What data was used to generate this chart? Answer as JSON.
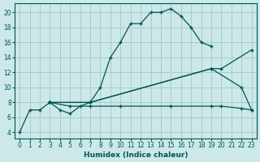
{
  "xlabel": "Humidex (Indice chaleur)",
  "background_color": "#cce8e8",
  "grid_color": "#aacccc",
  "line_color": "#005555",
  "xlim": [
    -0.5,
    23.5
  ],
  "ylim": [
    3.2,
    21.2
  ],
  "xticks": [
    0,
    1,
    2,
    3,
    4,
    5,
    6,
    7,
    8,
    9,
    10,
    11,
    12,
    13,
    14,
    15,
    16,
    17,
    18,
    19,
    20,
    21,
    22,
    23
  ],
  "yticks": [
    4,
    6,
    8,
    10,
    12,
    14,
    16,
    18,
    20
  ],
  "curve1_x": [
    0,
    1,
    2,
    3,
    4,
    5,
    6,
    7,
    8,
    9,
    10,
    11,
    12,
    13,
    14,
    15,
    16,
    17,
    18,
    19
  ],
  "curve1_y": [
    4,
    7,
    7,
    8,
    7,
    6.5,
    7.5,
    8,
    10,
    14,
    16,
    18.5,
    18.5,
    20,
    20,
    20.5,
    19.5,
    18,
    16,
    15.5
  ],
  "curve2_x": [
    3,
    7,
    19,
    20,
    23
  ],
  "curve2_y": [
    8,
    8,
    12.5,
    12.5,
    15
  ],
  "curve3_x": [
    3,
    5,
    7,
    10,
    15,
    19,
    20,
    22,
    23
  ],
  "curve3_y": [
    8,
    7.5,
    7.5,
    7.5,
    7.5,
    7.5,
    7.5,
    7.2,
    7
  ],
  "curve4_x": [
    3,
    7,
    19,
    22,
    23
  ],
  "curve4_y": [
    8,
    8,
    12.5,
    10,
    7
  ]
}
